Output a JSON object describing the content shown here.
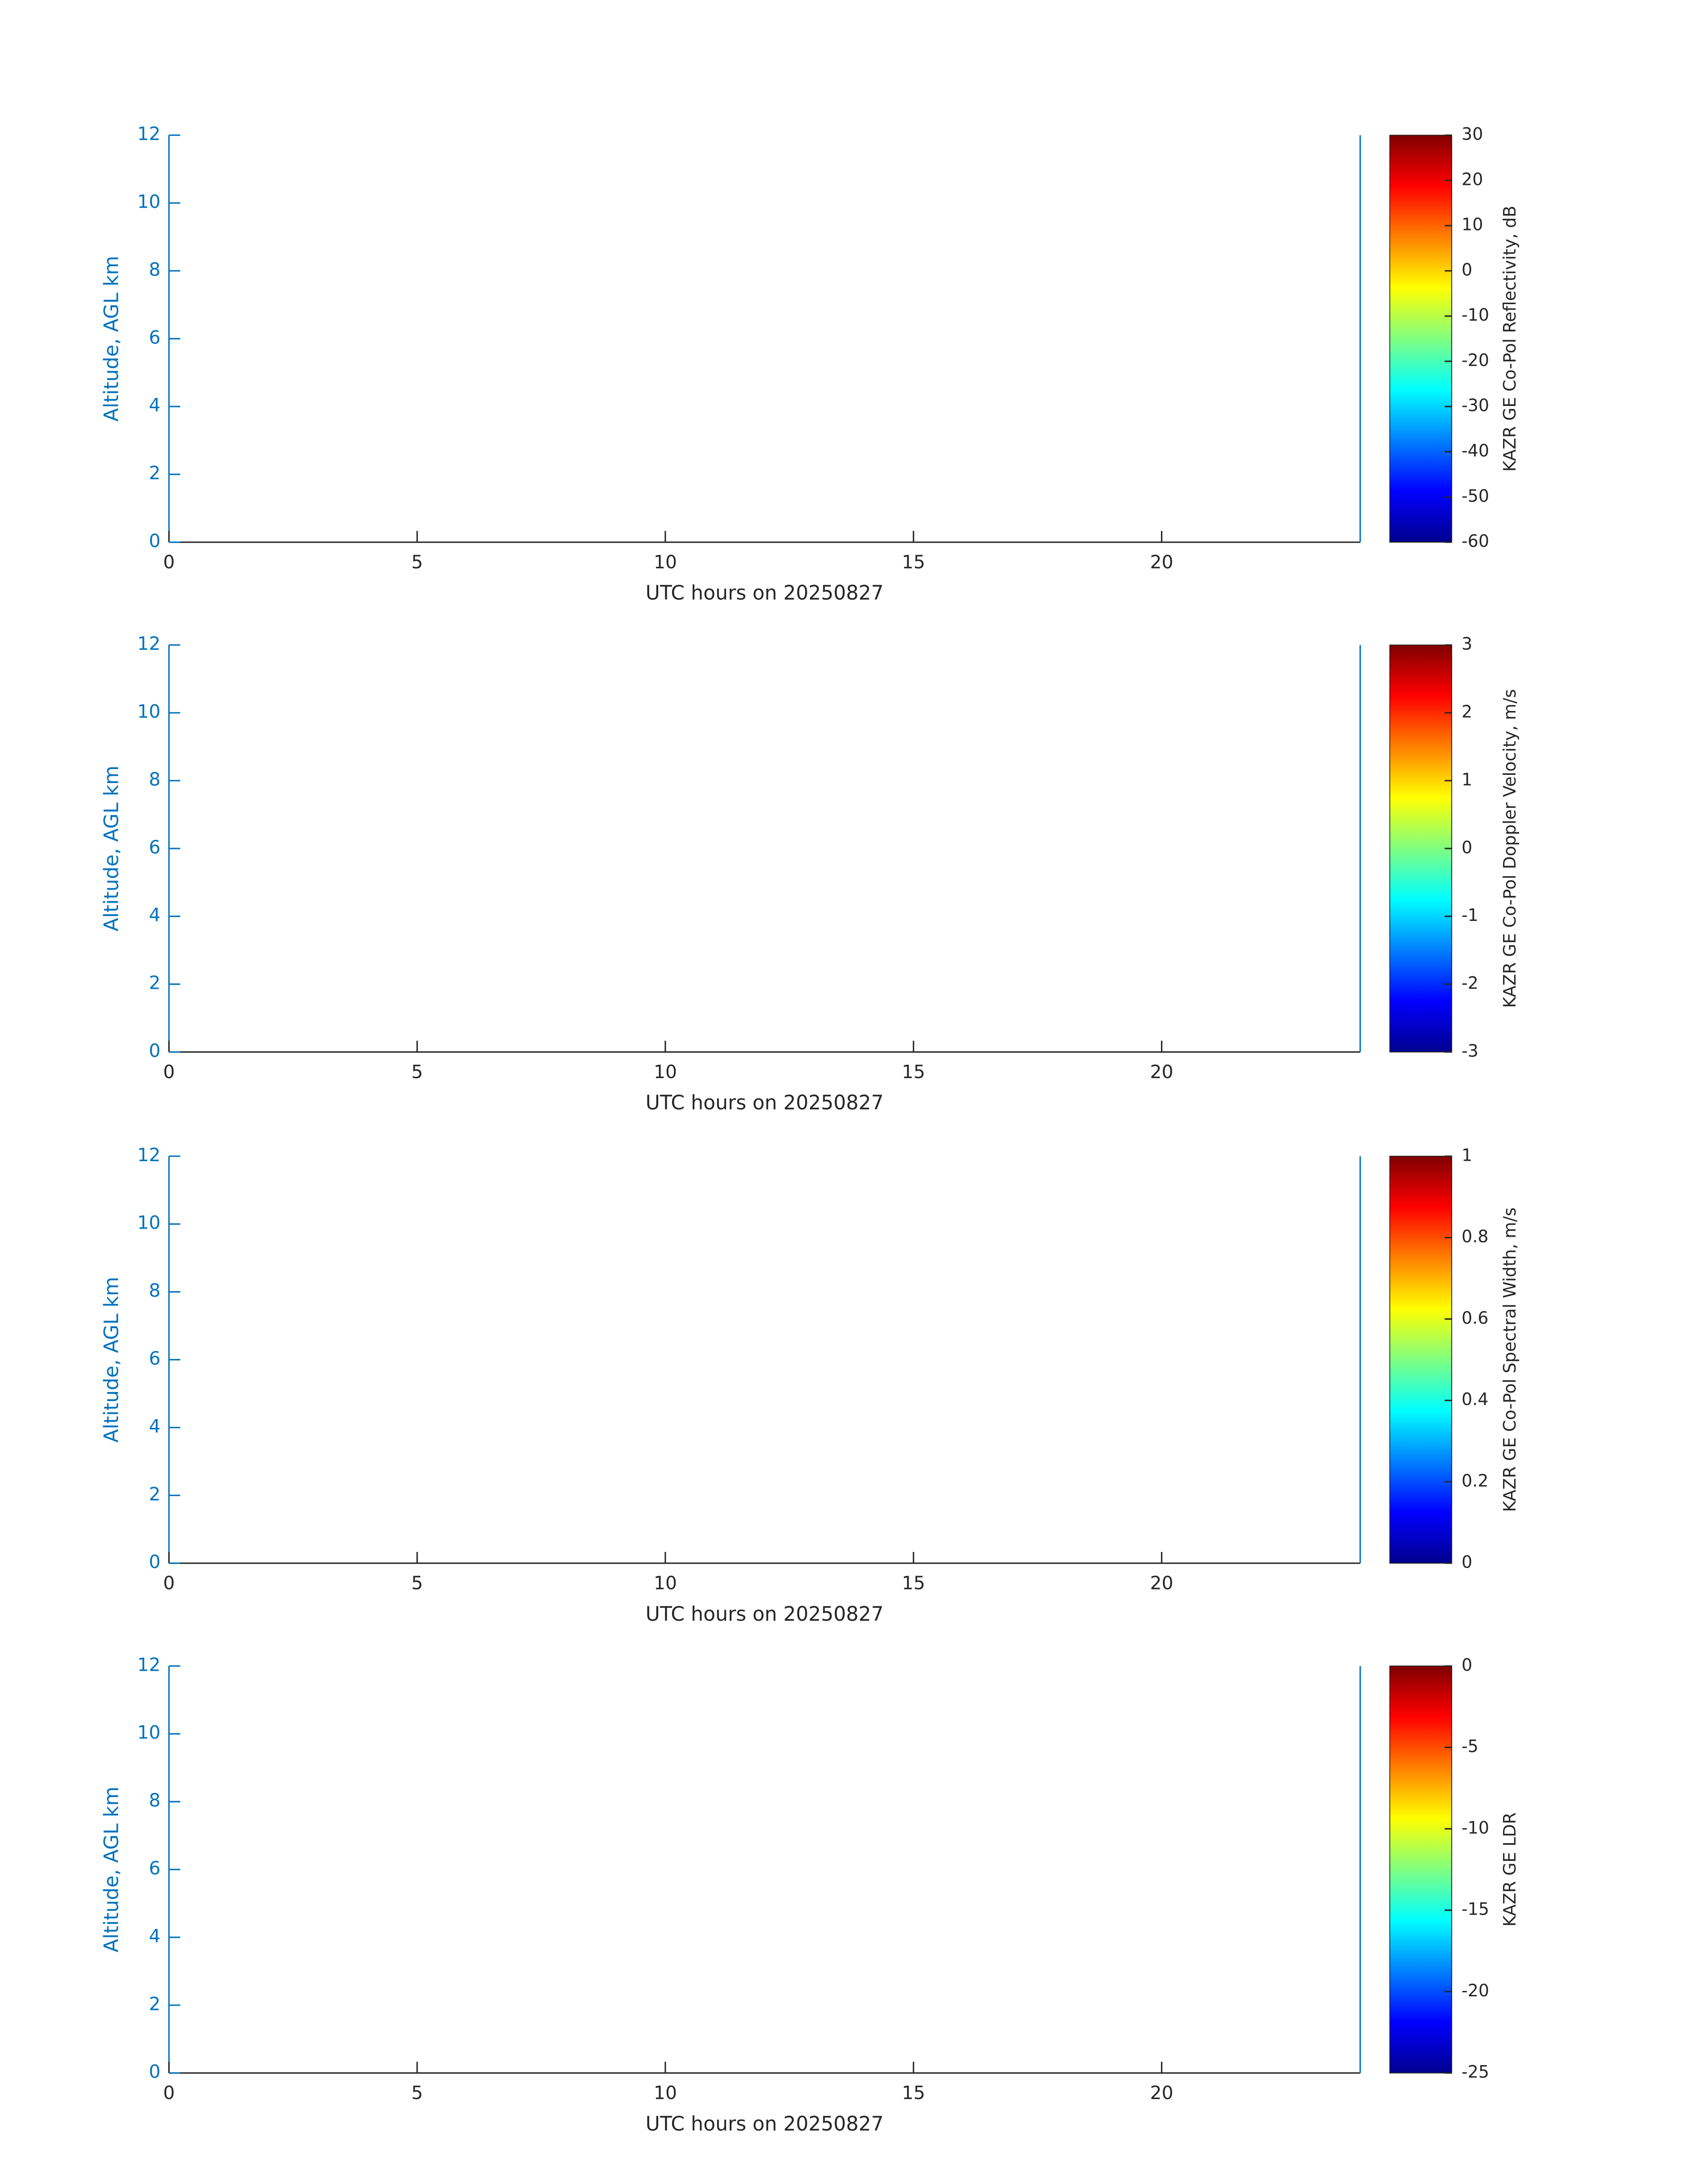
{
  "chart_data": [
    {
      "type": "heatmap",
      "xlabel": "UTC hours on 20250827",
      "ylabel": "Altitude, AGL km",
      "xlim": [
        0,
        24
      ],
      "ylim": [
        0,
        12
      ],
      "xticks": [
        0,
        5,
        10,
        15,
        20
      ],
      "yticks": [
        0,
        2,
        4,
        6,
        8,
        10,
        12
      ],
      "colormap": "jet",
      "colorbar": {
        "label": "KAZR GE Co-Pol Reflectivity, dB",
        "lim": [
          -60,
          30
        ],
        "ticks": [
          -60,
          -50,
          -40,
          -30,
          -20,
          -10,
          0,
          10,
          20,
          30
        ]
      }
    },
    {
      "type": "heatmap",
      "xlabel": "UTC hours on 20250827",
      "ylabel": "Altitude, AGL km",
      "xlim": [
        0,
        24
      ],
      "ylim": [
        0,
        12
      ],
      "xticks": [
        0,
        5,
        10,
        15,
        20
      ],
      "yticks": [
        0,
        2,
        4,
        6,
        8,
        10,
        12
      ],
      "colormap": "jet",
      "colorbar": {
        "label": "KAZR GE Co-Pol Doppler Velocity, m/s",
        "lim": [
          -3,
          3
        ],
        "ticks": [
          -3,
          -2,
          -1,
          0,
          1,
          2,
          3
        ]
      }
    },
    {
      "type": "heatmap",
      "xlabel": "UTC hours on 20250827",
      "ylabel": "Altitude, AGL km",
      "xlim": [
        0,
        24
      ],
      "ylim": [
        0,
        12
      ],
      "xticks": [
        0,
        5,
        10,
        15,
        20
      ],
      "yticks": [
        0,
        2,
        4,
        6,
        8,
        10,
        12
      ],
      "colormap": "jet",
      "colorbar": {
        "label": "KAZR GE Co-Pol Spectral Width, m/s",
        "lim": [
          0,
          1
        ],
        "ticks": [
          0,
          0.2,
          0.4,
          0.6,
          0.8,
          1
        ]
      }
    },
    {
      "type": "heatmap",
      "xlabel": "UTC hours on 20250827",
      "ylabel": "Altitude, AGL km",
      "xlim": [
        0,
        24
      ],
      "ylim": [
        0,
        12
      ],
      "xticks": [
        0,
        5,
        10,
        15,
        20
      ],
      "yticks": [
        0,
        2,
        4,
        6,
        8,
        10,
        12
      ],
      "colormap": "jet",
      "colorbar": {
        "label": "KAZR GE LDR",
        "lim": [
          -25,
          0
        ],
        "ticks": [
          -25,
          -20,
          -15,
          -10,
          -5,
          0
        ]
      }
    }
  ]
}
